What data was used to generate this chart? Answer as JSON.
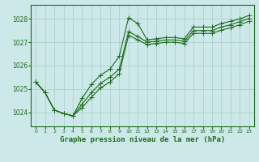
{
  "title": "Graphe pression niveau de la mer (hPa)",
  "bg_color": "#cce8e8",
  "grid_color": "#aacccc",
  "line_color": "#1a6b1a",
  "xlim": [
    -0.5,
    23.5
  ],
  "ylim": [
    1023.4,
    1028.6
  ],
  "yticks": [
    1024,
    1025,
    1026,
    1027,
    1028
  ],
  "xticks": [
    0,
    1,
    2,
    3,
    4,
    5,
    6,
    7,
    8,
    9,
    10,
    11,
    12,
    13,
    14,
    15,
    16,
    17,
    18,
    19,
    20,
    21,
    22,
    23
  ],
  "line1": [
    1025.3,
    1024.85,
    1024.1,
    1023.95,
    1023.85,
    1024.6,
    1025.2,
    1025.6,
    1025.85,
    1026.4,
    1028.05,
    1027.8,
    1027.1,
    1027.15,
    1027.2,
    1027.2,
    1027.15,
    1027.65,
    1027.65,
    1027.65,
    1027.8,
    1027.9,
    1028.0,
    1028.15
  ],
  "line2": [
    1025.3,
    1024.85,
    1024.1,
    1023.95,
    1023.85,
    1024.35,
    1024.85,
    1025.25,
    1025.5,
    1025.85,
    1027.45,
    1027.25,
    1027.0,
    1027.05,
    1027.1,
    1027.1,
    1027.05,
    1027.5,
    1027.5,
    1027.5,
    1027.65,
    1027.75,
    1027.88,
    1028.02
  ],
  "line3": [
    1025.3,
    1024.85,
    1024.1,
    1023.95,
    1023.85,
    1024.2,
    1024.65,
    1025.05,
    1025.3,
    1025.65,
    1027.3,
    1027.1,
    1026.9,
    1026.95,
    1027.0,
    1027.0,
    1026.95,
    1027.38,
    1027.38,
    1027.38,
    1027.52,
    1027.62,
    1027.75,
    1027.9
  ]
}
